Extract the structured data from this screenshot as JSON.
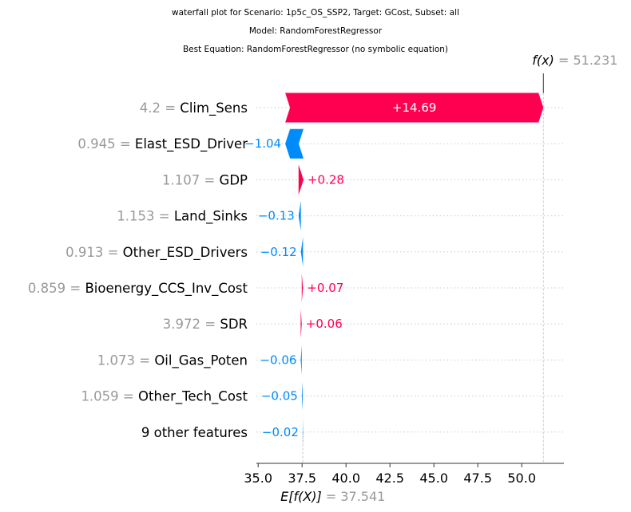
{
  "titles": [
    "waterfall plot for Scenario: 1p5c_OS_SSP2, Target: GCost, Subset: all",
    "Model: RandomForestRegressor",
    "Best Equation: RandomForestRegressor (no symbolic equation)"
  ],
  "chart_data": {
    "type": "waterfall",
    "base_value": 37.541,
    "final_value": 51.231,
    "fx_label": "f(x)",
    "fx_value_text": "51.231",
    "ex_label": "E[f(X)]",
    "ex_value_text": "37.541",
    "features": [
      {
        "value": "4.2",
        "name": "Clim_Sens",
        "contribution": 14.69,
        "label": "+14.69"
      },
      {
        "value": "0.945",
        "name": "Elast_ESD_Driver",
        "contribution": -1.04,
        "label": "−1.04"
      },
      {
        "value": "1.107",
        "name": "GDP",
        "contribution": 0.28,
        "label": "+0.28"
      },
      {
        "value": "1.153",
        "name": "Land_Sinks",
        "contribution": -0.13,
        "label": "−0.13"
      },
      {
        "value": "0.913",
        "name": "Other_ESD_Drivers",
        "contribution": -0.12,
        "label": "−0.12"
      },
      {
        "value": "0.859",
        "name": "Bioenergy_CCS_Inv_Cost",
        "contribution": 0.07,
        "label": "+0.07"
      },
      {
        "value": "3.972",
        "name": "SDR",
        "contribution": 0.06,
        "label": "+0.06"
      },
      {
        "value": "1.073",
        "name": "Oil_Gas_Poten",
        "contribution": -0.06,
        "label": "−0.06"
      },
      {
        "value": "1.059",
        "name": "Other_Tech_Cost",
        "contribution": -0.05,
        "label": "−0.05"
      },
      {
        "value": "",
        "name": "9 other features",
        "contribution": -0.02,
        "label": "−0.02"
      }
    ],
    "xlim": [
      34.9,
      52.4
    ],
    "xticks": [
      35.0,
      37.5,
      40.0,
      42.5,
      45.0,
      47.5,
      50.0
    ],
    "xtick_labels": [
      "35.0",
      "37.5",
      "40.0",
      "42.5",
      "45.0",
      "47.5",
      "50.0"
    ],
    "colors": {
      "positive": "#ff0051",
      "negative": "#008bfb",
      "muted": "#999999"
    }
  }
}
